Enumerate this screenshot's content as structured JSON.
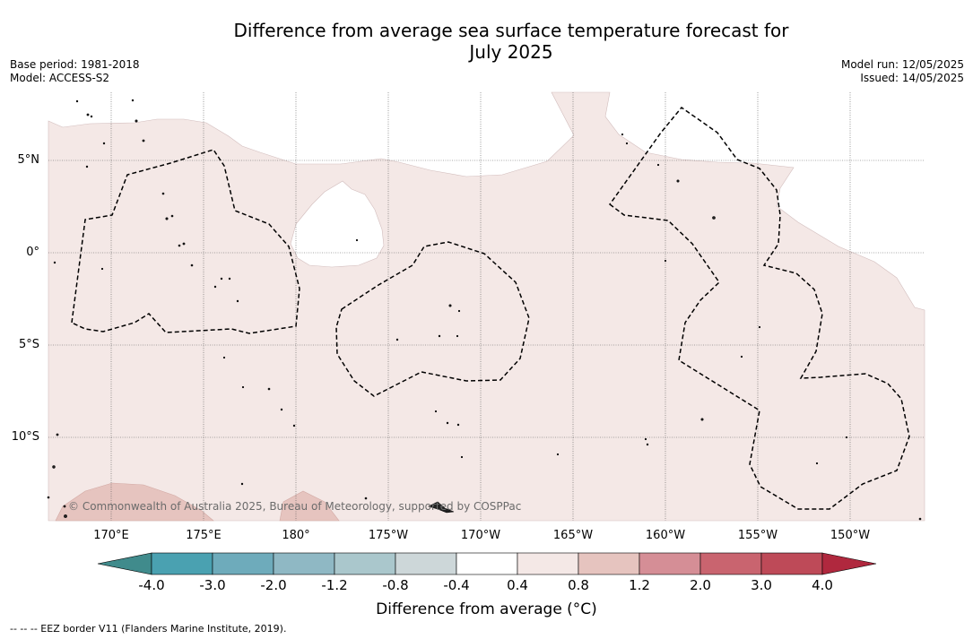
{
  "title": {
    "line1": "Difference from average sea surface temperature forecast for",
    "line2": "July 2025"
  },
  "meta": {
    "base_period": "Base period: 1981-2018",
    "model": "Model: ACCESS-S2",
    "model_run": "Model run: 12/05/2025",
    "issued": "Issued: 14/05/2025"
  },
  "map": {
    "lat_labels": [
      "5°N",
      "0°",
      "5°S",
      "10°S"
    ],
    "lon_labels": [
      "170°E",
      "175°E",
      "180°",
      "175°W",
      "170°W",
      "165°W",
      "160°W",
      "155°W",
      "150°W"
    ],
    "copyright": "© Commonwealth of Australia 2025, Bureau of Meteorology, supported by COSPPac",
    "colors": {
      "anomaly_0_4_to_0_8": "#f4e8e6",
      "anomaly_0_8_to_1_2": "#e6c4bf",
      "neutral": "#ffffff",
      "eez_border": "#000000"
    }
  },
  "colorbar": {
    "ticks": [
      "-4.0",
      "-3.0",
      "-2.0",
      "-1.2",
      "-0.8",
      "-0.4",
      "0.4",
      "0.8",
      "1.2",
      "2.0",
      "3.0",
      "4.0"
    ],
    "colors": [
      "#408b8c",
      "#4aa1b1",
      "#6eabbb",
      "#8fb8c4",
      "#aac7cc",
      "#cdd7d9",
      "#ffffff",
      "#f4e8e6",
      "#e6c4bf",
      "#d58e96",
      "#c9646f",
      "#be4a58",
      "#b0283e"
    ],
    "label": "Difference from average (°C)"
  },
  "footnote": "-- -- -- EEZ border V11 (Flanders Marine Institute, 2019)."
}
